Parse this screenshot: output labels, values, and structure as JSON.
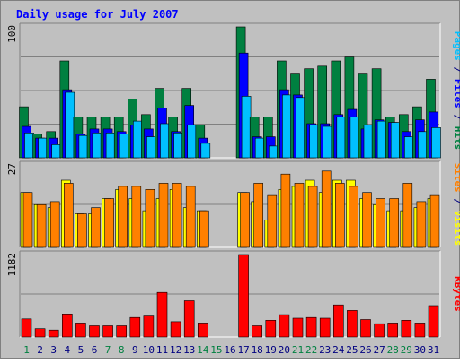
{
  "chart_data": {
    "type": "bar",
    "title": "Daily usage for July 2007",
    "categories": [
      "1",
      "2",
      "3",
      "4",
      "5",
      "6",
      "7",
      "8",
      "9",
      "10",
      "11",
      "12",
      "13",
      "14",
      "15",
      "16",
      "17",
      "18",
      "19",
      "20",
      "21",
      "22",
      "23",
      "24",
      "25",
      "26",
      "27",
      "28",
      "29",
      "30",
      "31"
    ],
    "weekend_days": [
      "1",
      "7",
      "8",
      "14",
      "15",
      "21",
      "22",
      "28",
      "29"
    ],
    "panels": [
      {
        "id": "top",
        "ymax_label": "100",
        "ylim": [
          0,
          100
        ],
        "right_label": [
          {
            "text": "Pages",
            "color": "#00c0ff"
          },
          {
            "text": " / ",
            "color": "#000080"
          },
          {
            "text": "Files",
            "color": "#0000ff"
          },
          {
            "text": " / ",
            "color": "#000080"
          },
          {
            "text": "Hits",
            "color": "#008040"
          }
        ],
        "series": [
          {
            "name": "Hits",
            "color": "#008040",
            "values": [
              39,
              18,
              20,
              74,
              31,
              31,
              31,
              31,
              45,
              33,
              53,
              31,
              53,
              25,
              0,
              0,
              100,
              31,
              31,
              74,
              64,
              68,
              70,
              74,
              77,
              64,
              68,
              31,
              33,
              39,
              60
            ]
          },
          {
            "name": "Files",
            "color": "#0000ff",
            "values": [
              24,
              15,
              15,
              52,
              18,
              22,
              22,
              20,
              25,
              22,
              38,
              20,
              40,
              15,
              0,
              0,
              80,
              16,
              16,
              52,
              48,
              26,
              26,
              33,
              37,
              22,
              29,
              27,
              20,
              29,
              35
            ]
          },
          {
            "name": "Pages",
            "color": "#00c0ff",
            "values": [
              19,
              15,
              10,
              50,
              17,
              19,
              19,
              18,
              28,
              16,
              26,
              19,
              25,
              11,
              0,
              0,
              47,
              15,
              9,
              48,
              46,
              25,
              24,
              31,
              31,
              25,
              28,
              27,
              16,
              20,
              23
            ]
          }
        ]
      },
      {
        "id": "middle",
        "ymax_label": "27",
        "ylim": [
          0,
          27
        ],
        "right_label": [
          {
            "text": "Sites",
            "color": "#ff8000"
          },
          {
            "text": " / ",
            "color": "#000080"
          },
          {
            "text": "Visits",
            "color": "#ffff00"
          }
        ],
        "series": [
          {
            "name": "Visits",
            "color": "#ffff00",
            "values": [
              18,
              14,
              13,
              22,
              11,
              11,
              16,
              19,
              16,
              12,
              16,
              19,
              13,
              12,
              0,
              0,
              18,
              15,
              9,
              19,
              20,
              22,
              18,
              22,
              22,
              16,
              14,
              12,
              12,
              13,
              16
            ]
          },
          {
            "name": "Sites",
            "color": "#ff8000",
            "values": [
              18,
              14,
              15,
              21,
              11,
              13,
              16,
              20,
              20,
              19,
              21,
              21,
              20,
              12,
              0,
              0,
              18,
              21,
              17,
              24,
              21,
              20,
              25,
              21,
              20,
              18,
              16,
              16,
              21,
              15,
              17
            ]
          }
        ]
      },
      {
        "id": "bottom",
        "ymax_label": "1182",
        "ylim": [
          0,
          1182
        ],
        "right_label": [
          {
            "text": "KBytes",
            "color": "#ff0000"
          }
        ],
        "series": [
          {
            "name": "KBytes",
            "color": "#ff0000",
            "values": [
              260,
              120,
              100,
              330,
              200,
              160,
              160,
              160,
              280,
              300,
              640,
              220,
              520,
              200,
              0,
              0,
              1182,
              160,
              240,
              320,
              270,
              280,
              270,
              460,
              380,
              250,
              190,
              200,
              240,
              200,
              450
            ]
          }
        ]
      }
    ]
  },
  "colors": {
    "background": "#c0c0c0",
    "frame": "#808080",
    "title": "#0000ff",
    "weekday_label": "#000080",
    "weekend_label": "#008040",
    "grid": "#808080"
  }
}
